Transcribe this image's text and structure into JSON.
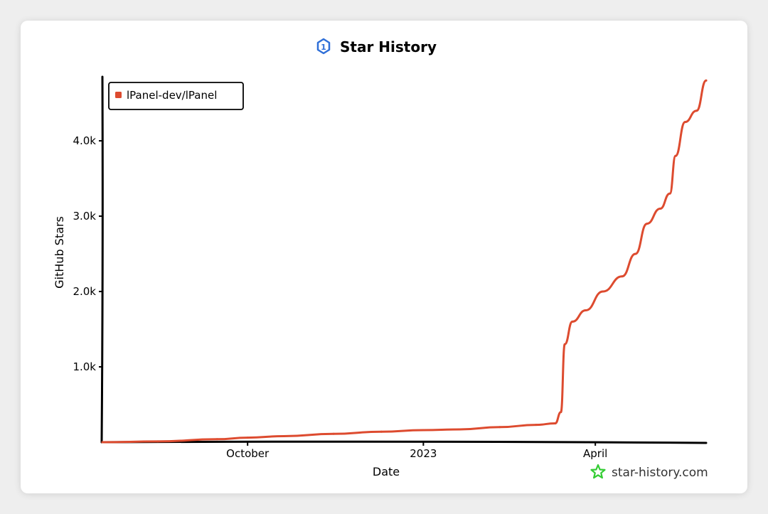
{
  "header": {
    "title": "Star History",
    "title_icon": "star-history-logo-icon"
  },
  "brand": {
    "text": "star-history.com",
    "icon": "star-history-star-icon",
    "icon_color": "#33cc33"
  },
  "chart_data": {
    "type": "line",
    "title": "Star History",
    "xlabel": "Date",
    "ylabel": "GitHub Stars",
    "x_ticks": [
      "October",
      "2023",
      "April"
    ],
    "y_ticks": [
      "1.0k",
      "2.0k",
      "3.0k",
      "4.0k"
    ],
    "y_tick_values": [
      1000,
      2000,
      3000,
      4000
    ],
    "ylim": [
      0,
      4850
    ],
    "xlim": [
      "2022-07-17",
      "2023-05-29"
    ],
    "legend_position": "top-left",
    "grid": false,
    "series": [
      {
        "name": "lPanel-dev/lPanel",
        "color": "#dd4b2f",
        "points": [
          [
            "2022-07-17",
            0
          ],
          [
            "2022-08-15",
            10
          ],
          [
            "2022-09-15",
            40
          ],
          [
            "2022-10-01",
            60
          ],
          [
            "2022-10-20",
            80
          ],
          [
            "2022-11-15",
            110
          ],
          [
            "2022-12-10",
            140
          ],
          [
            "2023-01-01",
            160
          ],
          [
            "2023-01-20",
            170
          ],
          [
            "2023-02-10",
            200
          ],
          [
            "2023-03-01",
            230
          ],
          [
            "2023-03-11",
            250
          ],
          [
            "2023-03-14",
            400
          ],
          [
            "2023-03-16",
            1300
          ],
          [
            "2023-03-20",
            1600
          ],
          [
            "2023-03-27",
            1750
          ],
          [
            "2023-04-05",
            2000
          ],
          [
            "2023-04-15",
            2200
          ],
          [
            "2023-04-22",
            2500
          ],
          [
            "2023-04-28",
            2900
          ],
          [
            "2023-05-05",
            3100
          ],
          [
            "2023-05-10",
            3300
          ],
          [
            "2023-05-13",
            3800
          ],
          [
            "2023-05-18",
            4250
          ],
          [
            "2023-05-24",
            4400
          ],
          [
            "2023-05-29",
            4800
          ]
        ]
      }
    ]
  }
}
